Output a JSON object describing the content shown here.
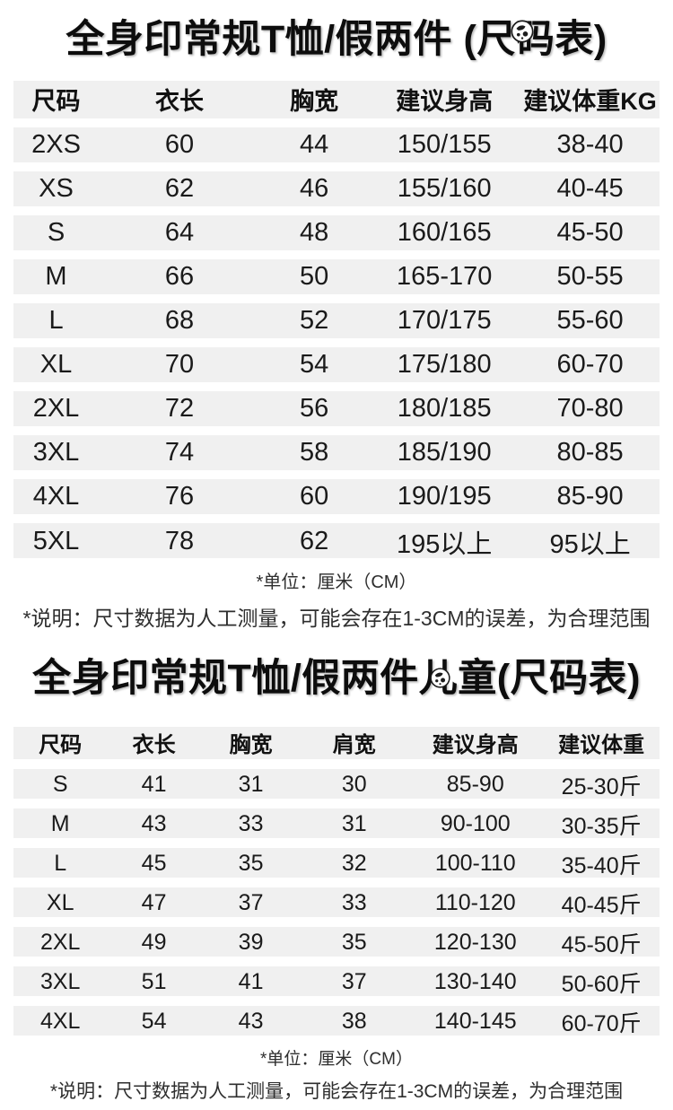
{
  "page": {
    "background": "#ffffff",
    "band_color": "#f0f0f0",
    "text_color": "#1a1a1a"
  },
  "icons": {
    "title_sticker": "sticker-ball-icon"
  },
  "adult": {
    "title": "全身印常规T恤/假两件 (尺码表)",
    "table": {
      "headers": [
        "尺码",
        "衣长",
        "胸宽",
        "建议身高",
        "建议体重KG"
      ],
      "rows": [
        [
          "2XS",
          "60",
          "44",
          "150/155",
          "38-40"
        ],
        [
          "XS",
          "62",
          "46",
          "155/160",
          "40-45"
        ],
        [
          "S",
          "64",
          "48",
          "160/165",
          "45-50"
        ],
        [
          "M",
          "66",
          "50",
          "165-170",
          "50-55"
        ],
        [
          "L",
          "68",
          "52",
          "170/175",
          "55-60"
        ],
        [
          "XL",
          "70",
          "54",
          "175/180",
          "60-70"
        ],
        [
          "2XL",
          "72",
          "56",
          "180/185",
          "70-80"
        ],
        [
          "3XL",
          "74",
          "58",
          "185/190",
          "80-85"
        ],
        [
          "4XL",
          "76",
          "60",
          "190/195",
          "85-90"
        ],
        [
          "5XL",
          "78",
          "62",
          "195以上",
          "95以上"
        ]
      ]
    },
    "unit_note": "*单位：厘米（CM）",
    "disclaimer": "*说明：尺寸数据为人工测量，可能会存在1-3CM的误差，为合理范围"
  },
  "kids": {
    "title": "全身印常规T恤/假两件儿童(尺码表)",
    "table": {
      "headers": [
        "尺码",
        "衣长",
        "胸宽",
        "肩宽",
        "建议身高",
        "建议体重"
      ],
      "rows": [
        [
          "S",
          "41",
          "31",
          "30",
          "85-90",
          "25-30斤"
        ],
        [
          "M",
          "43",
          "33",
          "31",
          "90-100",
          "30-35斤"
        ],
        [
          "L",
          "45",
          "35",
          "32",
          "100-110",
          "35-40斤"
        ],
        [
          "XL",
          "47",
          "37",
          "33",
          "110-120",
          "40-45斤"
        ],
        [
          "2XL",
          "49",
          "39",
          "35",
          "120-130",
          "45-50斤"
        ],
        [
          "3XL",
          "51",
          "41",
          "37",
          "130-140",
          "50-60斤"
        ],
        [
          "4XL",
          "54",
          "43",
          "38",
          "140-145",
          "60-70斤"
        ]
      ]
    },
    "unit_note": "*单位：厘米（CM）",
    "disclaimer": "*说明：尺寸数据为人工测量，可能会存在1-3CM的误差，为合理范围"
  }
}
